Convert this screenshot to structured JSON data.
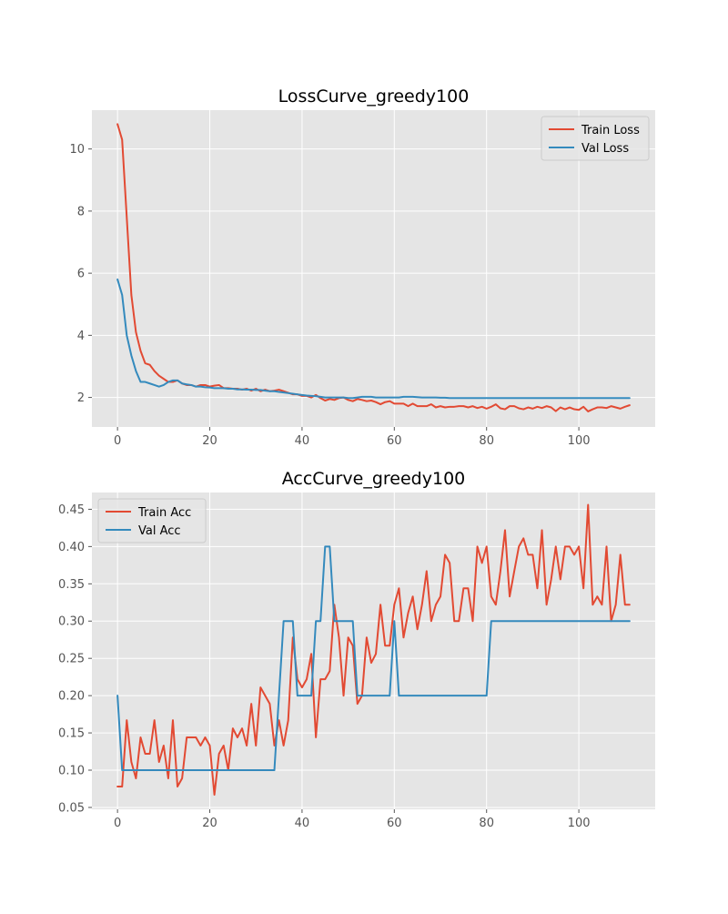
{
  "chart_data": [
    {
      "type": "line",
      "title": "LossCurve_greedy100",
      "xlabel": "",
      "ylabel": "",
      "xlim": [
        -5.55,
        116.55
      ],
      "ylim": [
        1.05,
        11.25
      ],
      "x_ticks": [
        0,
        20,
        40,
        60,
        80,
        100
      ],
      "y_ticks": [
        2,
        4,
        6,
        8,
        10
      ],
      "grid": true,
      "legend_position": "upper right",
      "colors": {
        "Train Loss": "#E24A33",
        "Val Loss": "#348ABD",
        "plot_background": "#E5E5E5",
        "grid": "#FFFFFF",
        "tick_text": "#555555"
      },
      "x": [
        0,
        1,
        2,
        3,
        4,
        5,
        6,
        7,
        8,
        9,
        10,
        11,
        12,
        13,
        14,
        15,
        16,
        17,
        18,
        19,
        20,
        21,
        22,
        23,
        24,
        25,
        26,
        27,
        28,
        29,
        30,
        31,
        32,
        33,
        34,
        35,
        36,
        37,
        38,
        39,
        40,
        41,
        42,
        43,
        44,
        45,
        46,
        47,
        48,
        49,
        50,
        51,
        52,
        53,
        54,
        55,
        56,
        57,
        58,
        59,
        60,
        61,
        62,
        63,
        64,
        65,
        66,
        67,
        68,
        69,
        70,
        71,
        72,
        73,
        74,
        75,
        76,
        77,
        78,
        79,
        80,
        81,
        82,
        83,
        84,
        85,
        86,
        87,
        88,
        89,
        90,
        91,
        92,
        93,
        94,
        95,
        96,
        97,
        98,
        99,
        100,
        101,
        102,
        103,
        104,
        105,
        106,
        107,
        108,
        109,
        110,
        111
      ],
      "series": [
        {
          "name": "Train Loss",
          "color": "#E24A33",
          "values": [
            10.8,
            10.3,
            7.8,
            5.3,
            4.1,
            3.5,
            3.1,
            3.05,
            2.85,
            2.7,
            2.6,
            2.5,
            2.5,
            2.55,
            2.45,
            2.4,
            2.4,
            2.35,
            2.4,
            2.4,
            2.35,
            2.38,
            2.4,
            2.3,
            2.3,
            2.28,
            2.28,
            2.25,
            2.28,
            2.22,
            2.28,
            2.2,
            2.25,
            2.2,
            2.22,
            2.25,
            2.2,
            2.15,
            2.1,
            2.1,
            2.05,
            2.05,
            2.0,
            2.08,
            1.98,
            1.9,
            1.95,
            1.92,
            1.98,
            2.0,
            1.92,
            1.88,
            1.95,
            1.92,
            1.88,
            1.9,
            1.85,
            1.78,
            1.85,
            1.88,
            1.8,
            1.8,
            1.8,
            1.72,
            1.8,
            1.72,
            1.72,
            1.72,
            1.78,
            1.68,
            1.72,
            1.68,
            1.7,
            1.7,
            1.72,
            1.72,
            1.68,
            1.72,
            1.66,
            1.7,
            1.64,
            1.7,
            1.78,
            1.65,
            1.62,
            1.72,
            1.72,
            1.65,
            1.62,
            1.68,
            1.64,
            1.7,
            1.66,
            1.72,
            1.68,
            1.56,
            1.68,
            1.62,
            1.68,
            1.62,
            1.6,
            1.7,
            1.55,
            1.62,
            1.68,
            1.68,
            1.66,
            1.72,
            1.68,
            1.64,
            1.7,
            1.75
          ]
        },
        {
          "name": "Val Loss",
          "color": "#348ABD",
          "values": [
            5.8,
            5.3,
            4.0,
            3.35,
            2.85,
            2.5,
            2.5,
            2.45,
            2.4,
            2.35,
            2.4,
            2.5,
            2.55,
            2.55,
            2.45,
            2.42,
            2.4,
            2.35,
            2.35,
            2.33,
            2.32,
            2.3,
            2.3,
            2.3,
            2.28,
            2.28,
            2.26,
            2.26,
            2.25,
            2.25,
            2.24,
            2.24,
            2.22,
            2.2,
            2.2,
            2.18,
            2.16,
            2.14,
            2.12,
            2.1,
            2.08,
            2.06,
            2.05,
            2.04,
            2.02,
            2.0,
            2.0,
            2.0,
            2.0,
            2.0,
            1.98,
            1.98,
            2.0,
            2.02,
            2.02,
            2.02,
            2.0,
            2.0,
            2.0,
            2.0,
            2.0,
            2.0,
            2.02,
            2.02,
            2.02,
            2.01,
            2.0,
            2.0,
            2.0,
            2.0,
            1.99,
            1.99,
            1.98,
            1.98,
            1.98,
            1.98,
            1.98,
            1.98,
            1.98,
            1.98,
            1.98,
            1.98,
            1.98,
            1.98,
            1.98,
            1.98,
            1.98,
            1.98,
            1.98,
            1.98,
            1.98,
            1.98,
            1.98,
            1.98,
            1.98,
            1.98,
            1.98,
            1.98,
            1.98,
            1.98,
            1.98,
            1.98,
            1.98,
            1.98,
            1.98,
            1.98,
            1.98,
            1.98,
            1.98,
            1.98,
            1.98,
            1.98
          ]
        }
      ]
    },
    {
      "type": "line",
      "title": "AccCurve_greedy100",
      "xlabel": "",
      "ylabel": "",
      "xlim": [
        -5.55,
        116.55
      ],
      "ylim": [
        0.0475,
        0.4725
      ],
      "x_ticks": [
        0,
        20,
        40,
        60,
        80,
        100
      ],
      "y_ticks": [
        0.05,
        0.1,
        0.15,
        0.2,
        0.25,
        0.3,
        0.35,
        0.4,
        0.45
      ],
      "grid": true,
      "legend_position": "upper left",
      "colors": {
        "Train Acc": "#E24A33",
        "Val Acc": "#348ABD",
        "plot_background": "#E5E5E5",
        "grid": "#FFFFFF",
        "tick_text": "#555555"
      },
      "x": [
        0,
        1,
        2,
        3,
        4,
        5,
        6,
        7,
        8,
        9,
        10,
        11,
        12,
        13,
        14,
        15,
        16,
        17,
        18,
        19,
        20,
        21,
        22,
        23,
        24,
        25,
        26,
        27,
        28,
        29,
        30,
        31,
        32,
        33,
        34,
        35,
        36,
        37,
        38,
        39,
        40,
        41,
        42,
        43,
        44,
        45,
        46,
        47,
        48,
        49,
        50,
        51,
        52,
        53,
        54,
        55,
        56,
        57,
        58,
        59,
        60,
        61,
        62,
        63,
        64,
        65,
        66,
        67,
        68,
        69,
        70,
        71,
        72,
        73,
        74,
        75,
        76,
        77,
        78,
        79,
        80,
        81,
        82,
        83,
        84,
        85,
        86,
        87,
        88,
        89,
        90,
        91,
        92,
        93,
        94,
        95,
        96,
        97,
        98,
        99,
        100,
        101,
        102,
        103,
        104,
        105,
        106,
        107,
        108,
        109,
        110,
        111
      ],
      "series": [
        {
          "name": "Train Acc",
          "color": "#E24A33",
          "values": [
            0.078,
            0.078,
            0.167,
            0.111,
            0.089,
            0.144,
            0.122,
            0.122,
            0.167,
            0.111,
            0.133,
            0.089,
            0.167,
            0.078,
            0.089,
            0.144,
            0.144,
            0.144,
            0.133,
            0.144,
            0.133,
            0.067,
            0.122,
            0.133,
            0.1,
            0.156,
            0.144,
            0.156,
            0.133,
            0.189,
            0.133,
            0.211,
            0.2,
            0.189,
            0.133,
            0.167,
            0.133,
            0.167,
            0.278,
            0.222,
            0.211,
            0.222,
            0.256,
            0.144,
            0.222,
            0.222,
            0.233,
            0.322,
            0.278,
            0.2,
            0.278,
            0.267,
            0.189,
            0.2,
            0.278,
            0.244,
            0.256,
            0.322,
            0.267,
            0.267,
            0.322,
            0.344,
            0.278,
            0.311,
            0.333,
            0.289,
            0.322,
            0.367,
            0.3,
            0.322,
            0.333,
            0.389,
            0.378,
            0.3,
            0.3,
            0.344,
            0.344,
            0.3,
            0.4,
            0.378,
            0.4,
            0.333,
            0.322,
            0.367,
            0.422,
            0.333,
            0.367,
            0.4,
            0.411,
            0.389,
            0.389,
            0.344,
            0.422,
            0.322,
            0.356,
            0.4,
            0.356,
            0.4,
            0.4,
            0.389,
            0.4,
            0.344,
            0.456,
            0.322,
            0.333,
            0.322,
            0.4,
            0.3,
            0.322,
            0.389,
            0.322,
            0.322
          ]
        },
        {
          "name": "Val Acc",
          "color": "#348ABD",
          "values": [
            0.2,
            0.1,
            0.1,
            0.1,
            0.1,
            0.1,
            0.1,
            0.1,
            0.1,
            0.1,
            0.1,
            0.1,
            0.1,
            0.1,
            0.1,
            0.1,
            0.1,
            0.1,
            0.1,
            0.1,
            0.1,
            0.1,
            0.1,
            0.1,
            0.1,
            0.1,
            0.1,
            0.1,
            0.1,
            0.1,
            0.1,
            0.1,
            0.1,
            0.1,
            0.1,
            0.2,
            0.3,
            0.3,
            0.3,
            0.2,
            0.2,
            0.2,
            0.2,
            0.3,
            0.3,
            0.4,
            0.4,
            0.3,
            0.3,
            0.3,
            0.3,
            0.3,
            0.2,
            0.2,
            0.2,
            0.2,
            0.2,
            0.2,
            0.2,
            0.2,
            0.3,
            0.2,
            0.2,
            0.2,
            0.2,
            0.2,
            0.2,
            0.2,
            0.2,
            0.2,
            0.2,
            0.2,
            0.2,
            0.2,
            0.2,
            0.2,
            0.2,
            0.2,
            0.2,
            0.2,
            0.2,
            0.3,
            0.3,
            0.3,
            0.3,
            0.3,
            0.3,
            0.3,
            0.3,
            0.3,
            0.3,
            0.3,
            0.3,
            0.3,
            0.3,
            0.3,
            0.3,
            0.3,
            0.3,
            0.3,
            0.3,
            0.3,
            0.3,
            0.3,
            0.3,
            0.3,
            0.3,
            0.3,
            0.3,
            0.3,
            0.3,
            0.3
          ]
        }
      ]
    }
  ]
}
